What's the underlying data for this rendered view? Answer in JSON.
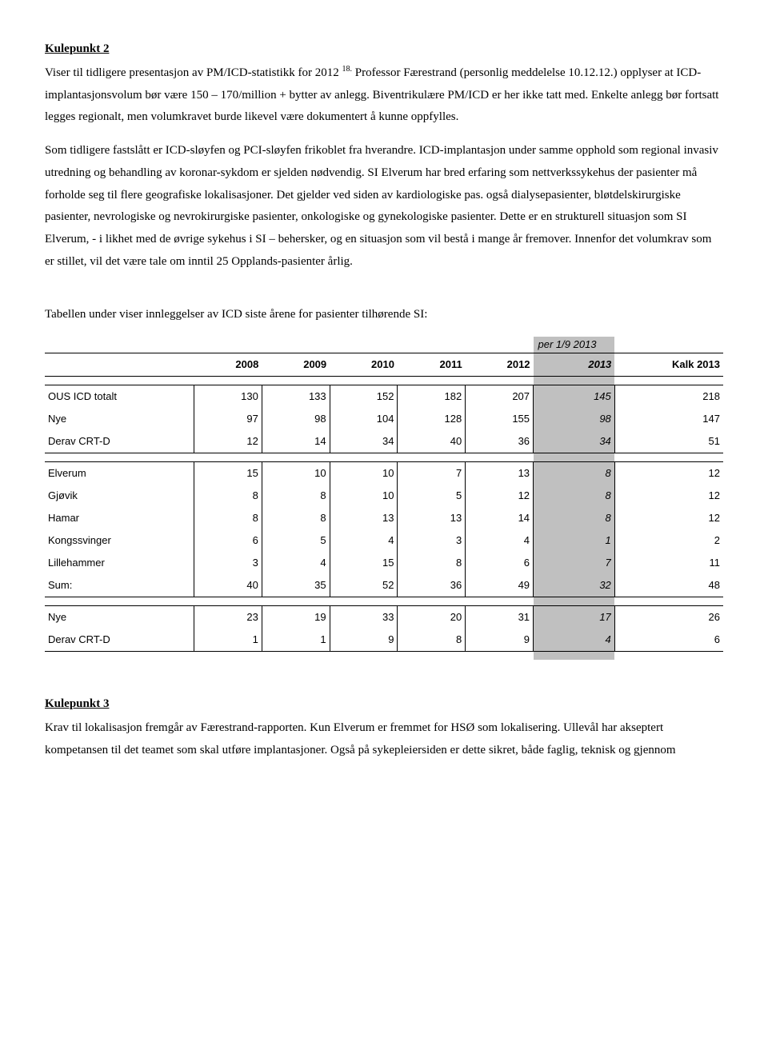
{
  "section2": {
    "heading": "Kulepunkt 2",
    "p1a": "Viser til tidligere presentasjon av PM/ICD-statistikk for 2012 ",
    "sup": "18.",
    "p1b": " Professor Færestrand (personlig meddelelse 10.12.12.) opplyser at ICD-implantasjonsvolum bør være 150 – 170/million + bytter av anlegg. Biventrikulære PM/ICD er her ikke tatt med. Enkelte anlegg bør fortsatt legges regionalt, men volumkravet burde likevel være dokumentert å kunne oppfylles.",
    "p2": "Som tidligere fastslått er ICD-sløyfen og PCI-sløyfen frikoblet fra hverandre. ICD-implantasjon under samme opphold som regional invasiv utredning og behandling av koronar-sykdom er sjelden nødvendig. SI Elverum har bred erfaring som nettverkssykehus der pasienter må forholde seg til flere geografiske lokalisasjoner. Det gjelder ved siden av kardiologiske pas. også dialysepasienter, bløtdelskirurgiske pasienter, nevrologiske og nevrokirurgiske pasienter, onkologiske og gynekologiske pasienter. Dette er en strukturell situasjon som SI Elverum, - i likhet med de øvrige sykehus i SI – behersker, og en situasjon som vil bestå i mange år fremover. Innenfor det volumkrav som er stillet, vil det være tale om inntil 25 Opplands-pasienter årlig.",
    "table_intro": "Tabellen under viser innleggelser av ICD siste årene for pasienter tilhørende SI:"
  },
  "table": {
    "per_label": "per 1/9 2013",
    "columns": [
      "2008",
      "2009",
      "2010",
      "2011",
      "2012",
      "2013",
      "Kalk 2013"
    ],
    "col_widths": [
      "22%",
      "10%",
      "10%",
      "10%",
      "10%",
      "10%",
      "12%",
      "16%"
    ],
    "shade_color": "#c0c0c0",
    "border_color": "#000000",
    "font_family": "Arial",
    "font_size_pt": 10,
    "groups": [
      {
        "rows": [
          {
            "label": "OUS ICD totalt",
            "vals": [
              "130",
              "133",
              "152",
              "182",
              "207",
              "145",
              "218"
            ],
            "italic6": true
          },
          {
            "label": "Nye",
            "vals": [
              "97",
              "98",
              "104",
              "128",
              "155",
              "98",
              "147"
            ],
            "italic6": true
          },
          {
            "label": "Derav CRT-D",
            "vals": [
              "12",
              "14",
              "34",
              "40",
              "36",
              "34",
              "51"
            ],
            "italic6": true
          }
        ]
      },
      {
        "rows": [
          {
            "label": "Elverum",
            "vals": [
              "15",
              "10",
              "10",
              "7",
              "13",
              "8",
              "12"
            ],
            "italic6": true
          },
          {
            "label": "Gjøvik",
            "vals": [
              "8",
              "8",
              "10",
              "5",
              "12",
              "8",
              "12"
            ],
            "italic6": true
          },
          {
            "label": "Hamar",
            "vals": [
              "8",
              "8",
              "13",
              "13",
              "14",
              "8",
              "12"
            ],
            "italic6": true
          },
          {
            "label": "Kongssvinger",
            "vals": [
              "6",
              "5",
              "4",
              "3",
              "4",
              "1",
              "2"
            ],
            "italic6": true
          },
          {
            "label": "Lillehammer",
            "vals": [
              "3",
              "4",
              "15",
              "8",
              "6",
              "7",
              "11"
            ],
            "italic6": true
          },
          {
            "label": "Sum:",
            "vals": [
              "40",
              "35",
              "52",
              "36",
              "49",
              "32",
              "48"
            ],
            "italic6": true
          }
        ]
      },
      {
        "rows": [
          {
            "label": "Nye",
            "vals": [
              "23",
              "19",
              "33",
              "20",
              "31",
              "17",
              "26"
            ],
            "italic6": true
          },
          {
            "label": "Derav CRT-D",
            "vals": [
              "1",
              "1",
              "9",
              "8",
              "9",
              "4",
              "6"
            ],
            "italic6": true
          }
        ]
      }
    ]
  },
  "section3": {
    "heading": "Kulepunkt 3",
    "p1": "Krav til lokalisasjon fremgår av Færestrand-rapporten. Kun Elverum er fremmet for HSØ som lokalisering. Ullevål har akseptert kompetansen til det teamet som skal utføre implantasjoner. Også på sykepleiersiden er dette sikret, både faglig, teknisk og gjennom"
  }
}
